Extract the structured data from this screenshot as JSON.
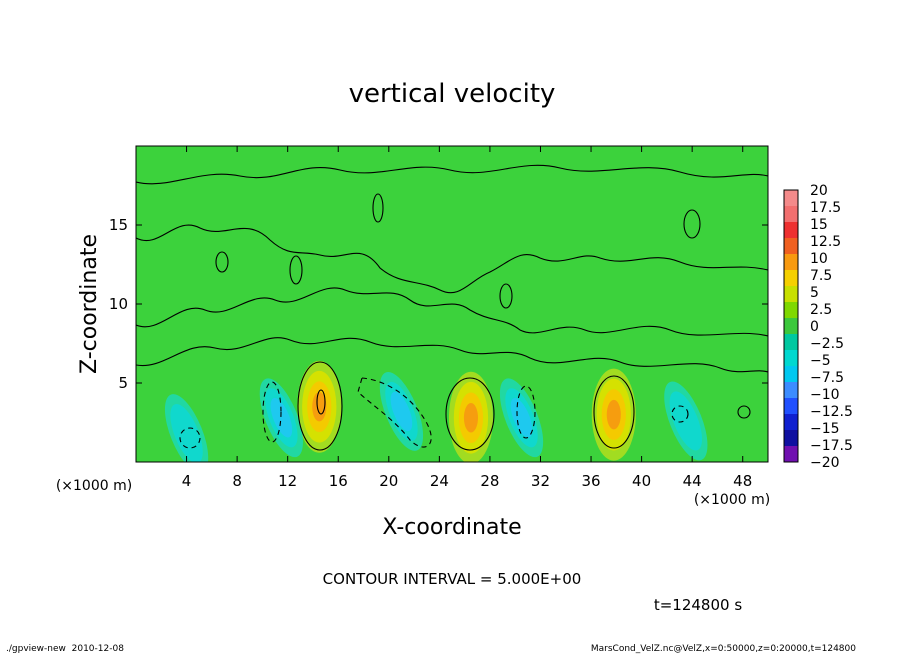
{
  "chart_data": {
    "type": "heatmap",
    "title": "vertical velocity",
    "xlabel": "X-coordinate",
    "ylabel": "Z-coordinate",
    "x_unit_label": "(×1000 m)",
    "xlim": [
      0,
      50
    ],
    "ylim": [
      0,
      20
    ],
    "x_ticks": [
      "4",
      "8",
      "12",
      "16",
      "20",
      "24",
      "28",
      "32",
      "36",
      "40",
      "44",
      "48"
    ],
    "x_tick_values": [
      4,
      8,
      12,
      16,
      20,
      24,
      28,
      32,
      36,
      40,
      44,
      48
    ],
    "y_ticks": [
      "5",
      "10",
      "15"
    ],
    "y_tick_values": [
      5,
      10,
      15
    ],
    "contour_interval_label": "CONTOUR INTERVAL = 5.000E+00",
    "time_label": "t=124800 s",
    "colorbar": {
      "labels": [
        "20",
        "17.5",
        "15",
        "12.5",
        "10",
        "7.5",
        "5",
        "2.5",
        "0",
        "−2.5",
        "−5",
        "−7.5",
        "−10",
        "−12.5",
        "−15",
        "−17.5",
        "−20"
      ],
      "colors": [
        "#f48a8a",
        "#f26f6f",
        "#ee3030",
        "#f06020",
        "#f89a10",
        "#f5d000",
        "#c8e000",
        "#7fd800",
        "#3cc83c",
        "#00c8a0",
        "#00d8d0",
        "#00c8f0",
        "#3c8cff",
        "#2050ff",
        "#1020d0",
        "#1010a0",
        "#7010b0"
      ]
    },
    "features": [
      {
        "x": 14.5,
        "z": 3.5,
        "w": 6.8,
        "label": "updraft"
      },
      {
        "x": 26.5,
        "z": 2.8,
        "w": 6.2,
        "label": "updraft"
      },
      {
        "x": 37.8,
        "z": 3.0,
        "w": 6.0,
        "label": "updraft"
      },
      {
        "x": 11.5,
        "z": 2.8,
        "w": -5.5,
        "label": "downdraft"
      },
      {
        "x": 21.0,
        "z": 3.2,
        "w": -6.0,
        "label": "downdraft"
      },
      {
        "x": 30.5,
        "z": 2.8,
        "w": -4.2,
        "label": "downdraft"
      },
      {
        "x": 4.0,
        "z": 1.8,
        "w": -3.5,
        "label": "downdraft"
      },
      {
        "x": 43.5,
        "z": 2.6,
        "w": -3.2,
        "label": "downdraft"
      }
    ]
  },
  "footer": {
    "left": "./gpview-new  2010-12-08",
    "right": "MarsCond_VelZ.nc@VelZ,x=0:50000,z=0:20000,t=124800"
  },
  "colors": {
    "background": "#ffffff",
    "field_base": "#3cd23c"
  }
}
